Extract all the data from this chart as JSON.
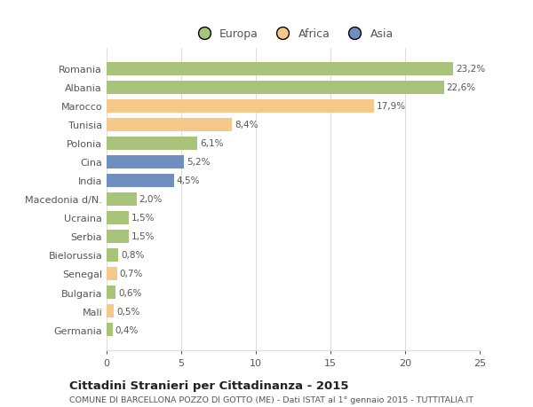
{
  "categories": [
    "Romania",
    "Albania",
    "Marocco",
    "Tunisia",
    "Polonia",
    "Cina",
    "India",
    "Macedonia d/N.",
    "Ucraina",
    "Serbia",
    "Bielorussia",
    "Senegal",
    "Bulgaria",
    "Mali",
    "Germania"
  ],
  "values": [
    23.2,
    22.6,
    17.9,
    8.4,
    6.1,
    5.2,
    4.5,
    2.0,
    1.5,
    1.5,
    0.8,
    0.7,
    0.6,
    0.5,
    0.4
  ],
  "labels": [
    "23,2%",
    "22,6%",
    "17,9%",
    "8,4%",
    "6,1%",
    "5,2%",
    "4,5%",
    "2,0%",
    "1,5%",
    "1,5%",
    "0,8%",
    "0,7%",
    "0,6%",
    "0,5%",
    "0,4%"
  ],
  "colors": [
    "#a8c47a",
    "#a8c47a",
    "#f5c98a",
    "#f5c98a",
    "#a8c47a",
    "#6e8fbf",
    "#6e8fbf",
    "#a8c47a",
    "#a8c47a",
    "#a8c47a",
    "#a8c47a",
    "#f5c98a",
    "#a8c47a",
    "#f5c98a",
    "#a8c47a"
  ],
  "legend": [
    {
      "label": "Europa",
      "color": "#a8c47a"
    },
    {
      "label": "Africa",
      "color": "#f5c98a"
    },
    {
      "label": "Asia",
      "color": "#6e8fbf"
    }
  ],
  "xlim": [
    0,
    25
  ],
  "xticks": [
    0,
    5,
    10,
    15,
    20,
    25
  ],
  "title": "Cittadini Stranieri per Cittadinanza - 2015",
  "subtitle": "COMUNE DI BARCELLONA POZZO DI GOTTO (ME) - Dati ISTAT al 1° gennaio 2015 - TUTTITALIA.IT",
  "background_color": "#ffffff",
  "bar_height": 0.72,
  "grid_color": "#dddddd",
  "text_color": "#555555"
}
